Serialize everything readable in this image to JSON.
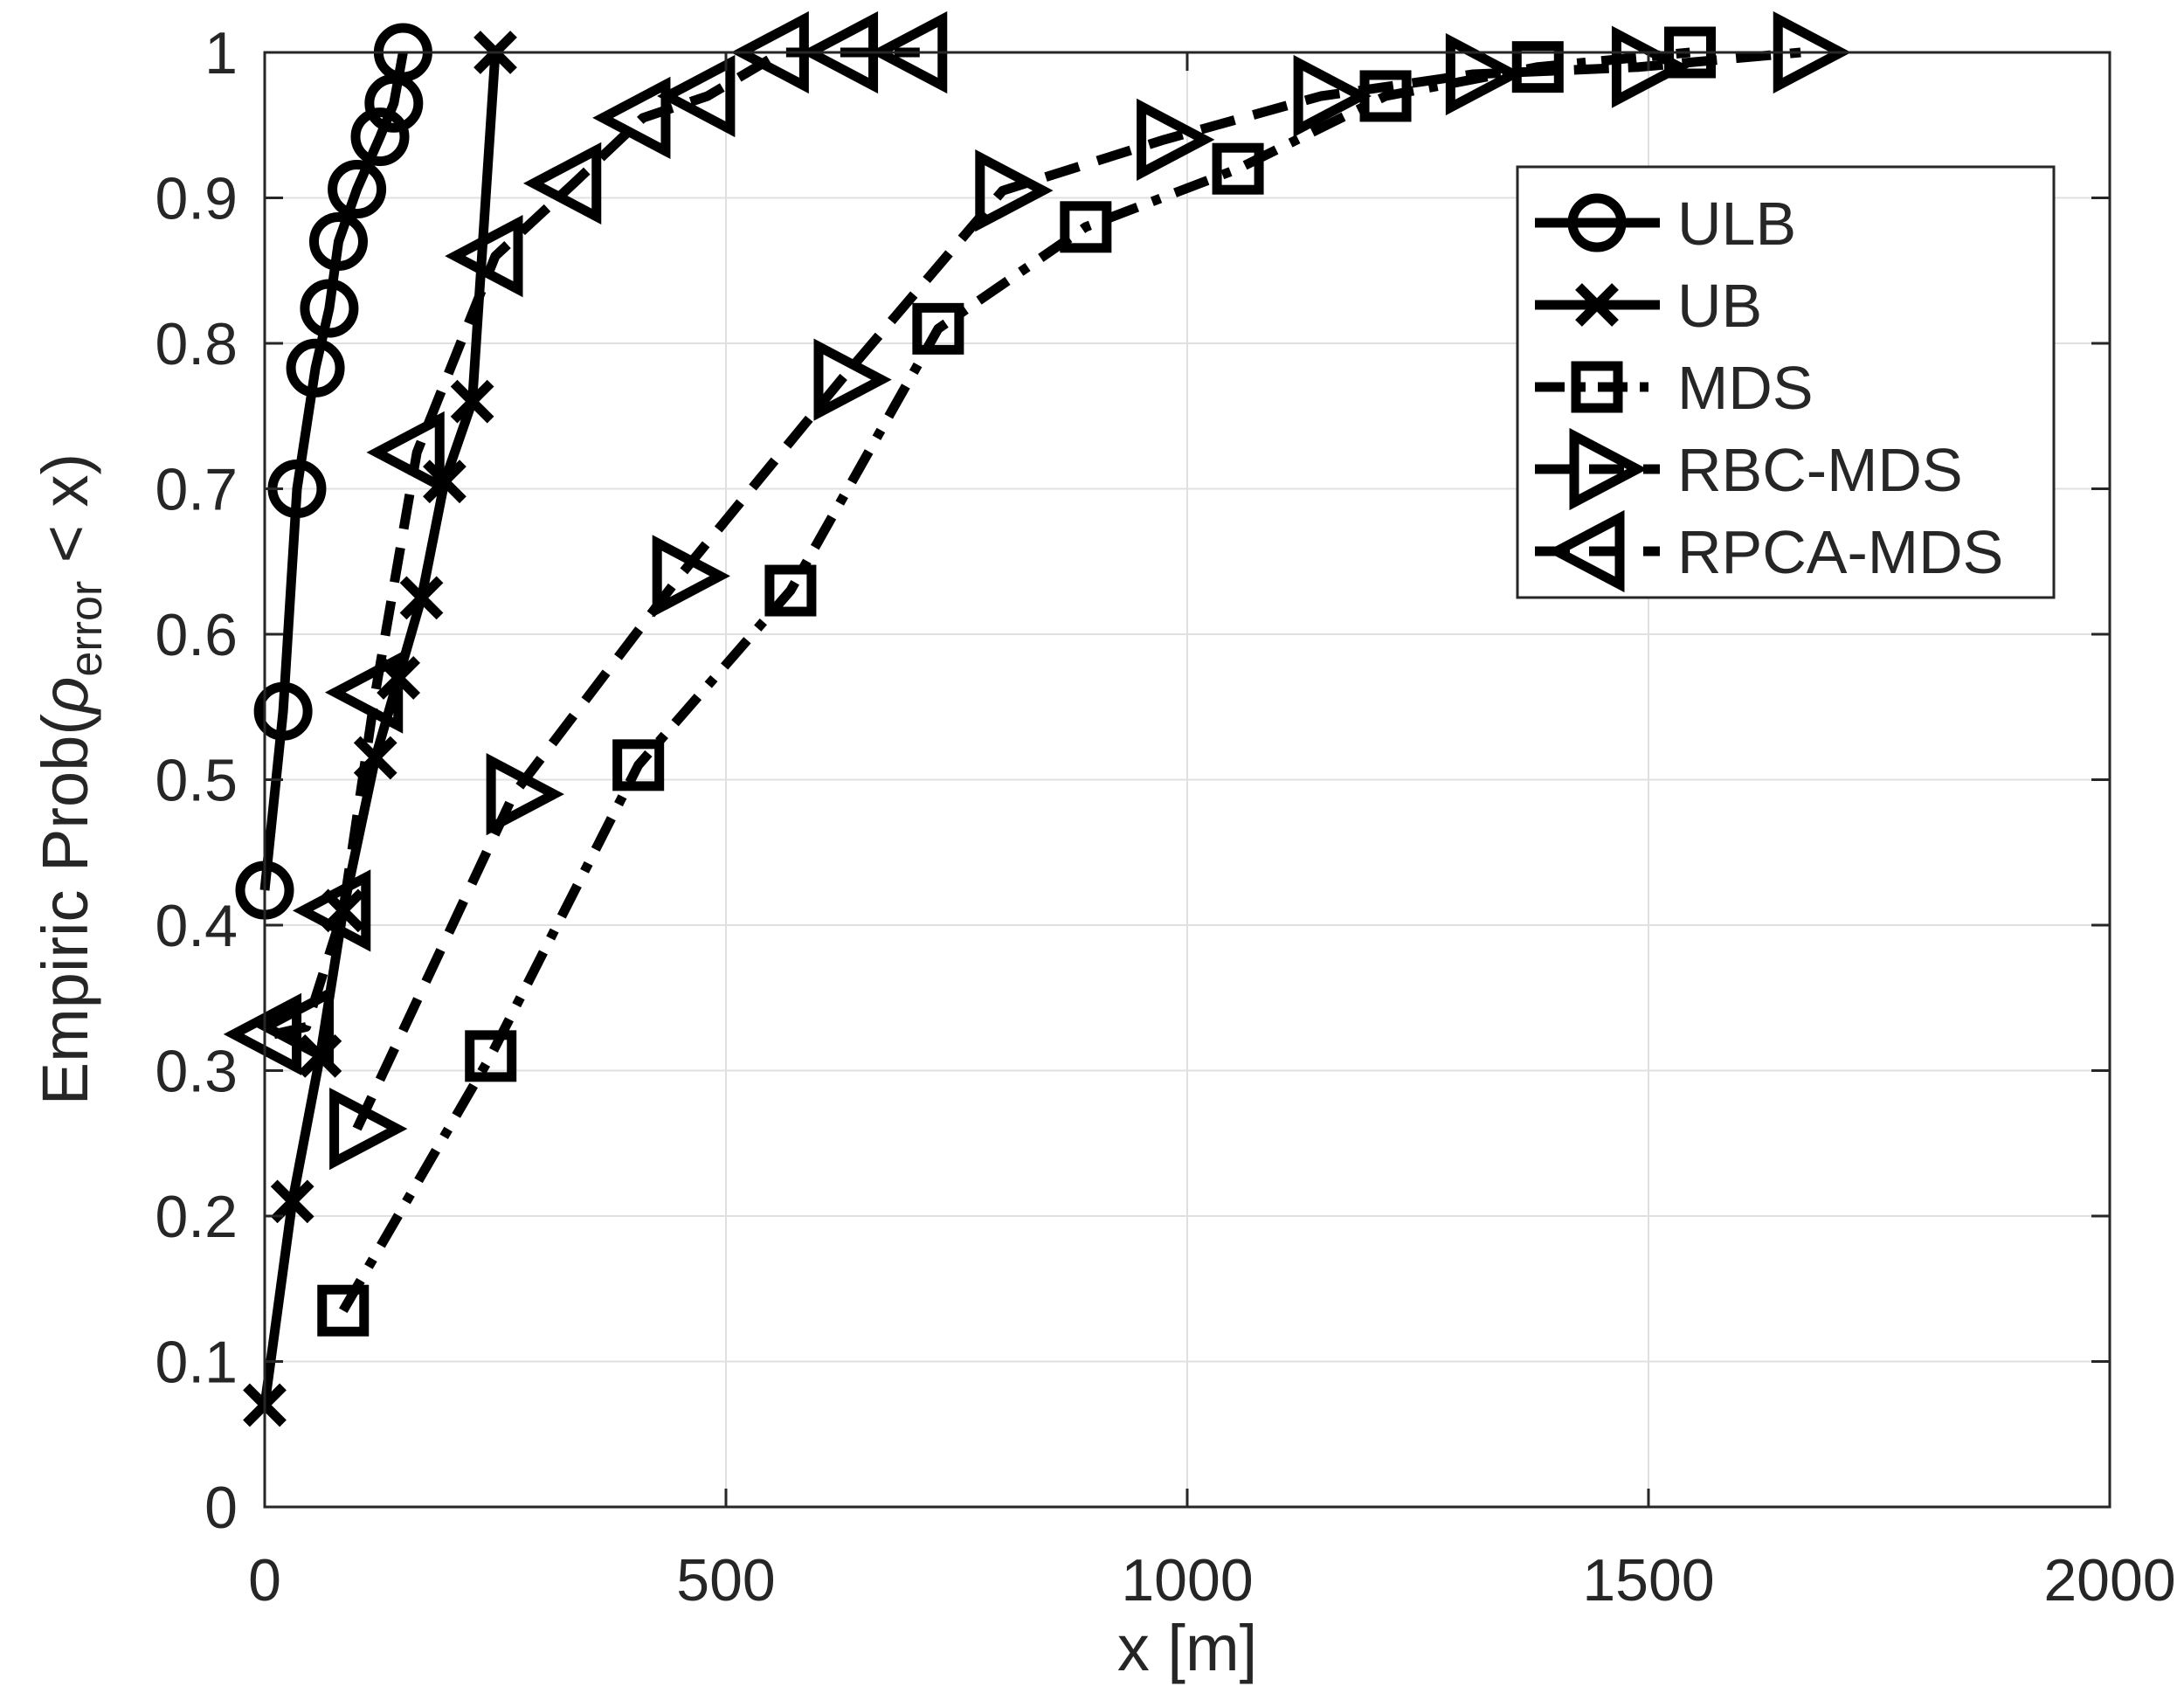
{
  "chart_data": {
    "type": "line",
    "title": "",
    "xlabel": "x [m]",
    "ylabel_prefix": "Empiric Prob(",
    "ylabel_symbol": "ρ",
    "ylabel_subscript": "error",
    "ylabel_suffix": " < x)",
    "xlim": [
      0,
      2000
    ],
    "ylim": [
      0,
      1
    ],
    "xticks": [
      0,
      500,
      1000,
      1500,
      2000
    ],
    "xtick_labels": [
      "0",
      "500",
      "1000",
      "1500",
      "2000"
    ],
    "yticks": [
      0,
      0.1,
      0.2,
      0.3,
      0.4,
      0.5,
      0.6,
      0.7,
      0.8,
      0.9,
      1
    ],
    "ytick_labels": [
      "0",
      "0.1",
      "0.2",
      "0.3",
      "0.4",
      "0.5",
      "0.6",
      "0.7",
      "0.8",
      "0.9",
      "1"
    ],
    "grid": true,
    "legend_position": "top-right",
    "colors": {
      "line": "#000000",
      "grid": "#e0e0e0",
      "axis": "#262626",
      "background": "#ffffff"
    },
    "series": [
      {
        "name": "ULB",
        "marker": "circle",
        "dash": "solid",
        "x": [
          0,
          20,
          35,
          55,
          70,
          80,
          100,
          125,
          140,
          150
        ],
        "y": [
          0.424,
          0.547,
          0.7,
          0.783,
          0.824,
          0.87,
          0.906,
          0.942,
          0.965,
          1.0
        ]
      },
      {
        "name": "UB",
        "marker": "x",
        "dash": "solid",
        "x": [
          0,
          30,
          60,
          85,
          120,
          145,
          170,
          195,
          225,
          250
        ],
        "y": [
          0.07,
          0.21,
          0.31,
          0.41,
          0.515,
          0.57,
          0.625,
          0.705,
          0.76,
          1.0
        ]
      },
      {
        "name": "MDS",
        "marker": "square",
        "dash": "dashdot",
        "x": [
          85,
          245,
          405,
          570,
          730,
          890,
          1055,
          1215,
          1380,
          1545
        ],
        "y": [
          0.135,
          0.31,
          0.51,
          0.63,
          0.81,
          0.88,
          0.92,
          0.97,
          0.99,
          1.0
        ]
      },
      {
        "name": "RBC-MDS",
        "marker": "triangle-right",
        "dash": "dashed",
        "x": [
          100,
          270,
          450,
          625,
          800,
          975,
          1145,
          1310,
          1490,
          1665
        ],
        "y": [
          0.26,
          0.49,
          0.64,
          0.775,
          0.905,
          0.94,
          0.97,
          0.985,
          0.99,
          1.0
        ]
      },
      {
        "name": "RPCA-MDS",
        "marker": "triangle-left",
        "dash": "dashed",
        "x": [
          10,
          45,
          85,
          120,
          165,
          250,
          335,
          410,
          480,
          560,
          635,
          710
        ],
        "y": [
          0.325,
          0.33,
          0.41,
          0.56,
          0.725,
          0.86,
          0.91,
          0.955,
          0.97,
          1.0,
          1.0,
          1.0
        ]
      }
    ]
  }
}
